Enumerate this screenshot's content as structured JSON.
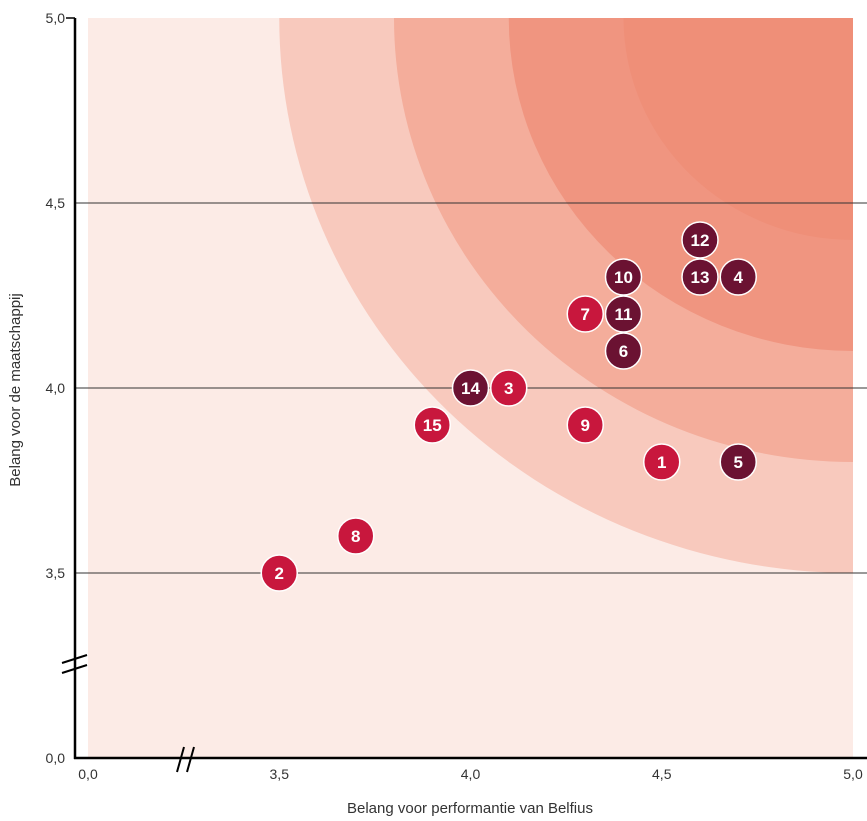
{
  "colors": {
    "background_zone": "#fcebe6",
    "zone_1": "#f8c9bd",
    "zone_2": "#f4ad9b",
    "zone_3": "#f09580",
    "zone_4": "#ef8f78",
    "marker_red": "#c8173d",
    "marker_dark": "#6b1232",
    "axis": "#000000",
    "gridline": "#333333"
  },
  "chart_data": {
    "type": "scatter",
    "title": "",
    "xlabel": "Belang voor performantie van Belfius",
    "ylabel": "Belang voor de maatschappij",
    "xlim": [
      3.0,
      5.0
    ],
    "ylim": [
      3.0,
      5.0
    ],
    "axis_break": true,
    "x_ticks": [
      {
        "value": 0.0,
        "label": "0,0"
      },
      {
        "value": 3.5,
        "label": "3,5"
      },
      {
        "value": 4.0,
        "label": "4,0"
      },
      {
        "value": 4.5,
        "label": "4,5"
      },
      {
        "value": 5.0,
        "label": "5,0"
      }
    ],
    "y_ticks": [
      {
        "value": 0.0,
        "label": "0,0"
      },
      {
        "value": 3.5,
        "label": "3,5"
      },
      {
        "value": 4.0,
        "label": "4,0"
      },
      {
        "value": 4.5,
        "label": "4,5"
      },
      {
        "value": 5.0,
        "label": "5,0"
      }
    ],
    "grid": "horizontal",
    "background_zones": [
      {
        "level": 1,
        "radius": 1.5
      },
      {
        "level": 2,
        "radius": 1.2
      },
      {
        "level": 3,
        "radius": 0.9
      },
      {
        "level": 4,
        "radius": 0.6
      }
    ],
    "points": [
      {
        "label": "1",
        "x": 4.5,
        "y": 3.8,
        "group": "red"
      },
      {
        "label": "2",
        "x": 3.5,
        "y": 3.5,
        "group": "red"
      },
      {
        "label": "3",
        "x": 4.1,
        "y": 4.0,
        "group": "red"
      },
      {
        "label": "4",
        "x": 4.7,
        "y": 4.3,
        "group": "dark"
      },
      {
        "label": "5",
        "x": 4.7,
        "y": 3.8,
        "group": "dark"
      },
      {
        "label": "6",
        "x": 4.4,
        "y": 4.1,
        "group": "dark"
      },
      {
        "label": "7",
        "x": 4.3,
        "y": 4.2,
        "group": "red"
      },
      {
        "label": "8",
        "x": 3.7,
        "y": 3.6,
        "group": "red"
      },
      {
        "label": "9",
        "x": 4.3,
        "y": 3.9,
        "group": "red"
      },
      {
        "label": "10",
        "x": 4.4,
        "y": 4.3,
        "group": "dark"
      },
      {
        "label": "11",
        "x": 4.4,
        "y": 4.2,
        "group": "dark"
      },
      {
        "label": "12",
        "x": 4.6,
        "y": 4.4,
        "group": "dark"
      },
      {
        "label": "13",
        "x": 4.6,
        "y": 4.3,
        "group": "dark"
      },
      {
        "label": "14",
        "x": 4.0,
        "y": 4.0,
        "group": "dark"
      },
      {
        "label": "15",
        "x": 3.9,
        "y": 3.9,
        "group": "red"
      }
    ]
  }
}
